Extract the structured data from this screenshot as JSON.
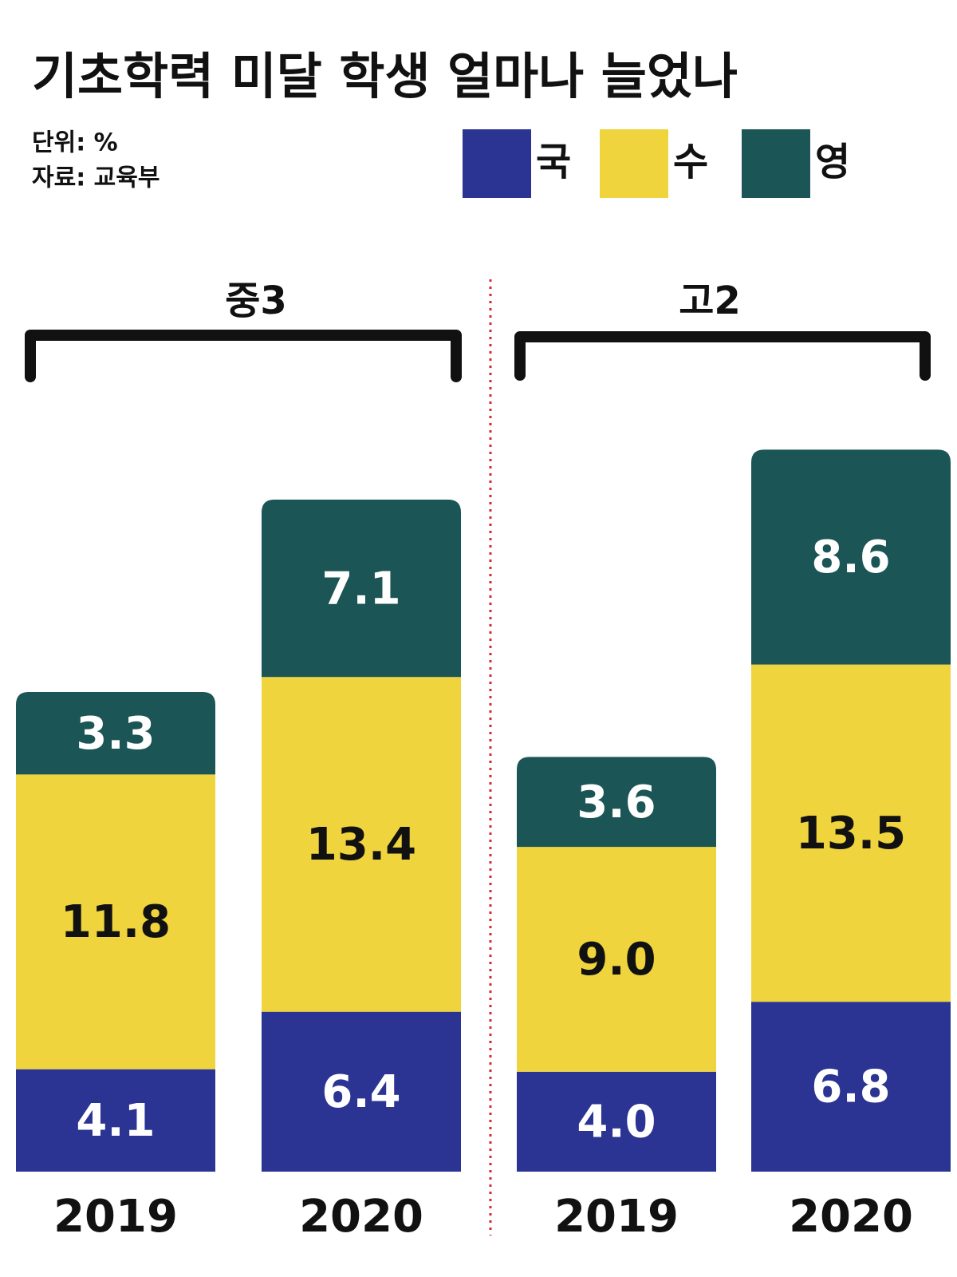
{
  "chart_data": {
    "type": "bar",
    "stacked": true,
    "title": "기초학력 미달 학생 얼마나 늘었나",
    "unit_note": "단위: %",
    "source_note": "자료: 교육부",
    "groups": [
      "중3",
      "고2"
    ],
    "categories": [
      "2019",
      "2020",
      "2019",
      "2020"
    ],
    "series": [
      {
        "name": "국",
        "color": "#2b3492",
        "values": [
          4.1,
          6.4,
          4.0,
          6.8
        ],
        "value_labels": [
          "4.1",
          "6.4",
          "4.0",
          "6.8"
        ]
      },
      {
        "name": "수",
        "color": "#efd43d",
        "values": [
          11.8,
          13.4,
          9.0,
          13.5
        ],
        "value_labels": [
          "11.8",
          "13.4",
          "9.0",
          "13.5"
        ]
      },
      {
        "name": "영",
        "color": "#1c5555",
        "values": [
          3.3,
          7.1,
          3.6,
          8.6
        ],
        "value_labels": [
          "3.3",
          "7.1",
          "3.6",
          "8.6"
        ]
      }
    ]
  }
}
